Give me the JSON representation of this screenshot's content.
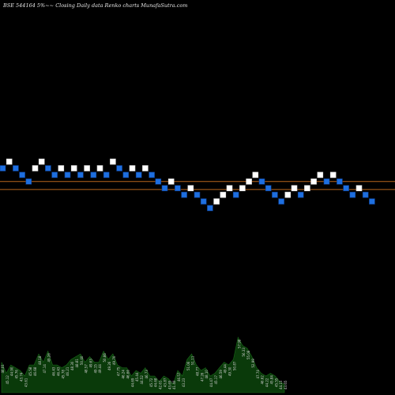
{
  "chart_data": {
    "type": "renko",
    "title": "BSE 544164  5%~~ Closing Daily data  Renko  charts MunafaSutra.com",
    "price_range": [
      0,
      43
    ],
    "reference_lines": [
      {
        "price": 34.5,
        "color": "#b8651c"
      },
      {
        "price": 33.3,
        "color": "#b8651c"
      }
    ],
    "brick_size": 1,
    "bricks": [
      {
        "price": 36.5,
        "dir": "down"
      },
      {
        "price": 37.5,
        "dir": "up"
      },
      {
        "price": 36.5,
        "dir": "down"
      },
      {
        "price": 35.5,
        "dir": "down"
      },
      {
        "price": 34.5,
        "dir": "down"
      },
      {
        "price": 36.5,
        "dir": "up"
      },
      {
        "price": 37.5,
        "dir": "up"
      },
      {
        "price": 36.5,
        "dir": "down"
      },
      {
        "price": 35.5,
        "dir": "down"
      },
      {
        "price": 36.5,
        "dir": "up"
      },
      {
        "price": 35.5,
        "dir": "down"
      },
      {
        "price": 36.5,
        "dir": "up"
      },
      {
        "price": 35.5,
        "dir": "down"
      },
      {
        "price": 36.5,
        "dir": "up"
      },
      {
        "price": 35.5,
        "dir": "down"
      },
      {
        "price": 36.5,
        "dir": "up"
      },
      {
        "price": 35.5,
        "dir": "down"
      },
      {
        "price": 37.5,
        "dir": "up"
      },
      {
        "price": 36.5,
        "dir": "down"
      },
      {
        "price": 35.5,
        "dir": "down"
      },
      {
        "price": 36.5,
        "dir": "up"
      },
      {
        "price": 35.5,
        "dir": "down"
      },
      {
        "price": 36.5,
        "dir": "up"
      },
      {
        "price": 35.5,
        "dir": "down"
      },
      {
        "price": 34.5,
        "dir": "down"
      },
      {
        "price": 33.5,
        "dir": "down"
      },
      {
        "price": 34.5,
        "dir": "up"
      },
      {
        "price": 33.5,
        "dir": "down"
      },
      {
        "price": 32.5,
        "dir": "down"
      },
      {
        "price": 33.5,
        "dir": "up"
      },
      {
        "price": 32.5,
        "dir": "down"
      },
      {
        "price": 31.5,
        "dir": "down"
      },
      {
        "price": 30.5,
        "dir": "down"
      },
      {
        "price": 31.5,
        "dir": "up"
      },
      {
        "price": 32.5,
        "dir": "up"
      },
      {
        "price": 33.5,
        "dir": "up"
      },
      {
        "price": 32.5,
        "dir": "down"
      },
      {
        "price": 33.5,
        "dir": "up"
      },
      {
        "price": 34.5,
        "dir": "up"
      },
      {
        "price": 35.5,
        "dir": "up"
      },
      {
        "price": 34.5,
        "dir": "down"
      },
      {
        "price": 33.5,
        "dir": "down"
      },
      {
        "price": 32.5,
        "dir": "down"
      },
      {
        "price": 31.5,
        "dir": "down"
      },
      {
        "price": 32.5,
        "dir": "up"
      },
      {
        "price": 33.5,
        "dir": "up"
      },
      {
        "price": 32.5,
        "dir": "down"
      },
      {
        "price": 33.5,
        "dir": "up"
      },
      {
        "price": 34.5,
        "dir": "up"
      },
      {
        "price": 35.5,
        "dir": "up"
      },
      {
        "price": 34.5,
        "dir": "down"
      },
      {
        "price": 35.5,
        "dir": "up"
      },
      {
        "price": 34.5,
        "dir": "down"
      },
      {
        "price": 33.5,
        "dir": "down"
      },
      {
        "price": 32.5,
        "dir": "down"
      },
      {
        "price": 33.5,
        "dir": "up"
      },
      {
        "price": 32.5,
        "dir": "down"
      },
      {
        "price": 31.5,
        "dir": "down"
      }
    ],
    "volume_labels": [
      "46.01",
      "45.12",
      "44.90",
      "45.76",
      "43.74",
      "43.61",
      "45.58",
      "46.68",
      "48.18",
      "47.14",
      "49.26",
      "46.43",
      "46.43",
      "45.78",
      "46.21",
      "48.30",
      "48.81",
      "50.40",
      "48.57",
      "49.63",
      "49.15",
      "49.44",
      "50.86",
      "49.26",
      "49.70",
      "47.75",
      "46.24",
      "46.66",
      "44.69",
      "45.44",
      "44.52",
      "46.73",
      "45.72",
      "44.68",
      "42.61",
      "43.87",
      "43.65",
      "41.40",
      "46.57",
      "43.23",
      "51.06",
      "51.11",
      "48.77",
      "47.26",
      "48.10",
      "44.47",
      "45.17",
      "46.59",
      "49.44",
      "49.30",
      "50.87",
      "57.98",
      "56.33",
      "55.08",
      "52.99",
      "47.74",
      "46.62",
      "44.22",
      "45.84",
      "45.55",
      "44.15",
      "43.65"
    ],
    "volume_values": [
      0.55,
      0.35,
      0.5,
      0.45,
      0.4,
      0.3,
      0.5,
      0.5,
      0.7,
      0.55,
      0.75,
      0.5,
      0.5,
      0.45,
      0.5,
      0.6,
      0.65,
      0.7,
      0.55,
      0.65,
      0.55,
      0.55,
      0.75,
      0.6,
      0.7,
      0.5,
      0.45,
      0.45,
      0.3,
      0.4,
      0.35,
      0.45,
      0.3,
      0.3,
      0.2,
      0.3,
      0.25,
      0.15,
      0.4,
      0.3,
      0.6,
      0.7,
      0.5,
      0.4,
      0.45,
      0.3,
      0.35,
      0.45,
      0.55,
      0.5,
      0.6,
      1.0,
      0.85,
      0.8,
      0.65,
      0.45,
      0.35,
      0.3,
      0.35,
      0.3,
      0.2,
      0.15
    ],
    "colors": {
      "background": "#000000",
      "up_brick": "#ffffff",
      "down_brick": "#1e6fe0",
      "down_brick_border": "#0d3d8a",
      "reference_line": "#b8651c",
      "volume_area": "#0a3a0a",
      "volume_edge": "#1a6a1a",
      "volume_text": "#d0d0d0"
    }
  }
}
